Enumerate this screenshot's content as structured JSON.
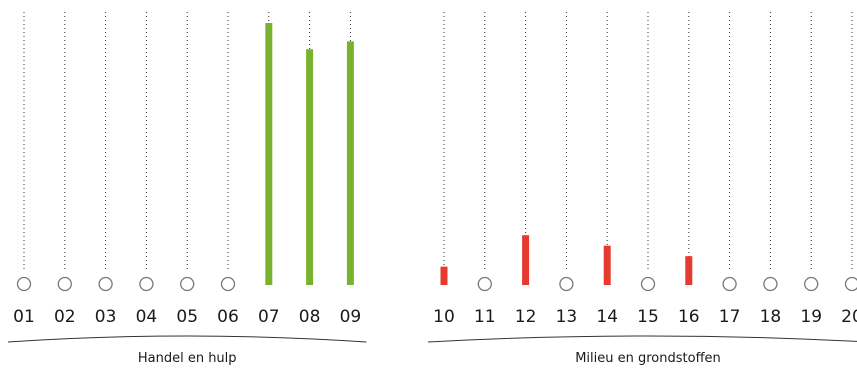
{
  "chart_data": {
    "type": "bar",
    "colors": {
      "positive": "#79b22f",
      "negative": "#e63a2e",
      "empty_marker": "#777777",
      "gridline": "#333333"
    },
    "ylim": [
      0,
      100
    ],
    "groups": [
      {
        "label": "Handel en hulp",
        "categories": [
          "01",
          "02",
          "03",
          "04",
          "05",
          "06",
          "07",
          "08",
          "09"
        ],
        "values": [
          0,
          0,
          0,
          0,
          0,
          0,
          100,
          90,
          93
        ],
        "sign": [
          "",
          "",
          "",
          "",
          "",
          "",
          "positive",
          "positive",
          "positive"
        ]
      },
      {
        "label": "Milieu en grondstoffen",
        "categories": [
          "10",
          "11",
          "12",
          "13",
          "14",
          "15",
          "16",
          "17",
          "18",
          "19",
          "20"
        ],
        "values": [
          7,
          0,
          19,
          0,
          15,
          0,
          11,
          0,
          0,
          0,
          0
        ],
        "sign": [
          "negative",
          "",
          "negative",
          "",
          "negative",
          "",
          "negative",
          "",
          "",
          "",
          ""
        ]
      }
    ]
  }
}
